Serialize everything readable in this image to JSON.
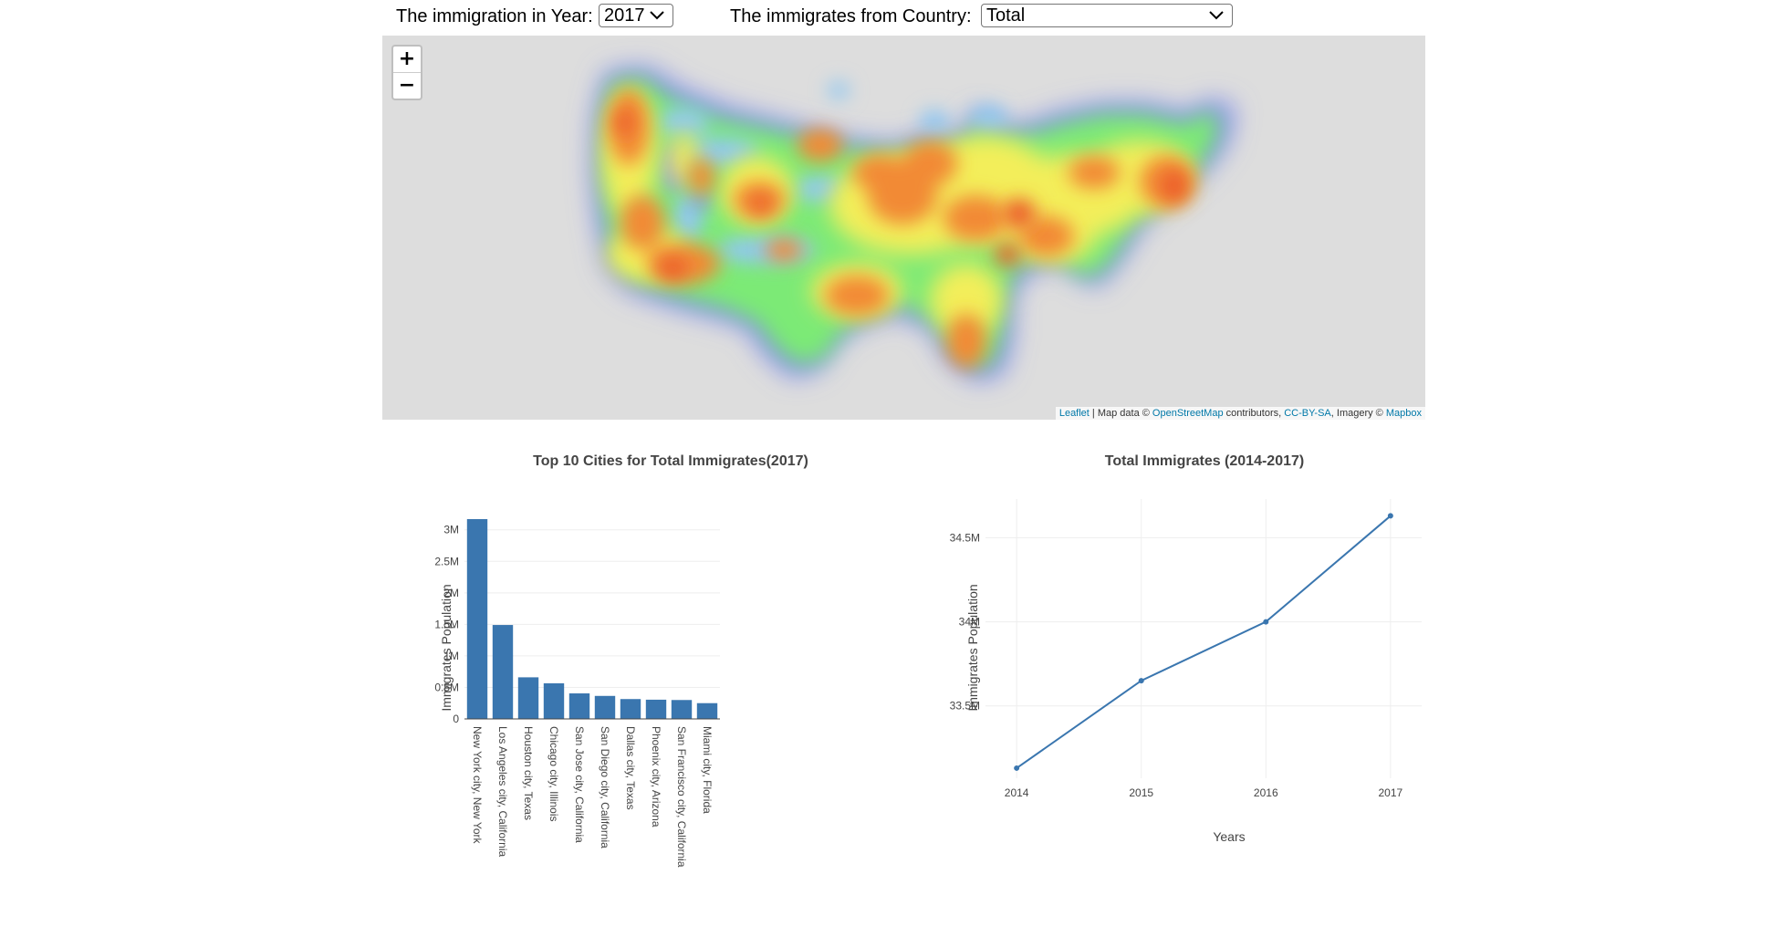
{
  "controls": {
    "year_label": "The immigration in Year:",
    "year_value": "2017",
    "country_label": "The immigrates from Country:",
    "country_value": "Total"
  },
  "map": {
    "zoom_in": "+",
    "zoom_out": "−",
    "attribution": {
      "leaflet": "Leaflet",
      "sep1": " | Map data © ",
      "osm": "OpenStreetMap",
      "mid": " contributors, ",
      "license": "CC-BY-SA",
      "imagery": ", Imagery © ",
      "mapbox": "Mapbox"
    }
  },
  "chart_data": [
    {
      "type": "bar",
      "title": "Top 10 Cities for Total Immigrates(2017)",
      "ylabel": "Immigrates Population",
      "xlabel": "",
      "categories": [
        "New York city, New York",
        "Los Angeles city, California",
        "Houston city, Texas",
        "Chicago city, Illinois",
        "San Jose city, California",
        "San Diego city, California",
        "Dallas city, Texas",
        "Phoenix city, Arizona",
        "San Francisco city, California",
        "Miami city, Florida"
      ],
      "values": [
        3170000,
        1490000,
        660000,
        565000,
        405000,
        365000,
        315000,
        305000,
        300000,
        250000
      ],
      "ylim": [
        0,
        3300000
      ],
      "yticks": [
        0,
        500000,
        1000000,
        1500000,
        2000000,
        2500000,
        3000000
      ],
      "ytick_labels": [
        "0",
        "0.5M",
        "1M",
        "1.5M",
        "2M",
        "2.5M",
        "3M"
      ],
      "color": "#3a76af",
      "grid": true
    },
    {
      "type": "line",
      "title": "Total Immigrates (2014-2017)",
      "ylabel": "Immigrates Population",
      "xlabel": "Years",
      "x": [
        2014,
        2015,
        2016,
        2017
      ],
      "x_labels": [
        "2014",
        "2015",
        "2016",
        "2017"
      ],
      "values": [
        33130000,
        33650000,
        34000000,
        34630000
      ],
      "ylim": [
        33070000,
        34730000
      ],
      "yticks": [
        33500000,
        34000000,
        34500000
      ],
      "ytick_labels": [
        "33.5M",
        "34M",
        "34.5M"
      ],
      "color": "#3a76af",
      "grid": true
    }
  ]
}
